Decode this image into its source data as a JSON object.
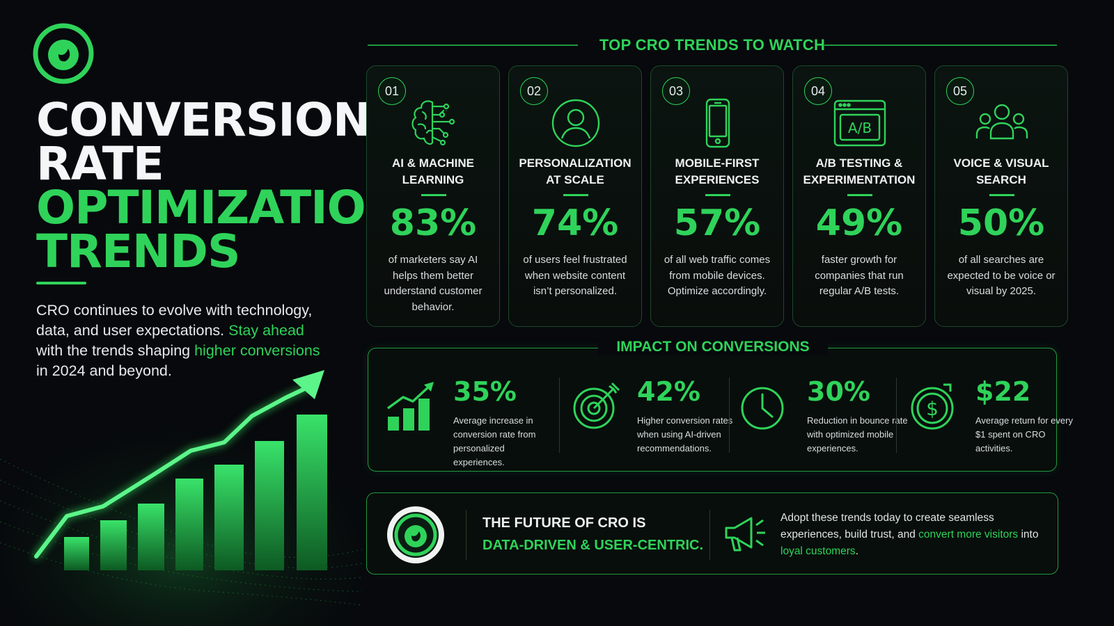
{
  "header": {
    "logo_icon": "eye-logo-icon",
    "title_line_1": "CONVERSION",
    "title_line_2": "RATE",
    "title_line_3": "OPTIMIZATION",
    "title_line_4": "TRENDS",
    "intro_part_1": "CRO continues to evolve with technology, data, and user expectations. ",
    "intro_highlight_1": "Stay ahead",
    "intro_part_2": " with the trends shaping ",
    "intro_highlight_2": "higher conversions",
    "intro_part_3": " in 2024 and beyond."
  },
  "trends": {
    "heading": "TOP CRO TRENDS TO WATCH",
    "cards": [
      {
        "number": "01",
        "icon": "brain-circuit-icon",
        "title": "AI & MACHINE LEARNING",
        "stat": "83%",
        "description": "of marketers say AI helps them better understand customer behavior."
      },
      {
        "number": "02",
        "icon": "user-icon",
        "title": "PERSONALIZATION AT SCALE",
        "stat": "74%",
        "description": "of users feel frustrated when website content isn’t personalized."
      },
      {
        "number": "03",
        "icon": "smartphone-icon",
        "title": "MOBILE-FIRST EXPERIENCES",
        "stat": "57%",
        "description": "of all web traffic comes from mobile devices. Optimize accordingly."
      },
      {
        "number": "04",
        "icon": "ab-test-window-icon",
        "title": "A/B TESTING & EXPERIMENTATION",
        "stat": "49%",
        "description": "faster growth for companies that run regular A/B tests."
      },
      {
        "number": "05",
        "icon": "user-group-icon",
        "title": "VOICE & VISUAL SEARCH",
        "stat": "50%",
        "description": "of all searches are expected to be voice or visual by 2025."
      }
    ]
  },
  "impact": {
    "heading": "IMPACT ON CONVERSIONS",
    "items": [
      {
        "icon": "bar-chart-growth-icon",
        "value": "35%",
        "description": "Average increase in conversion rate from personalized experiences."
      },
      {
        "icon": "target-icon",
        "value": "42%",
        "description": "Higher conversion rates when using AI-driven recommendations."
      },
      {
        "icon": "clock-icon",
        "value": "30%",
        "description": "Reduction in bounce rate with optimized mobile experiences."
      },
      {
        "icon": "dollar-coin-icon",
        "value": "$22",
        "description": "Average return for every $1 spent on CRO activities."
      }
    ]
  },
  "footer": {
    "logo_icon": "eye-logo-icon",
    "line_1": "THE FUTURE OF CRO IS",
    "line_2": "DATA-DRIVEN & USER-CENTRIC.",
    "megaphone_icon": "megaphone-icon",
    "text_part_1": "Adopt these trends today to create seamless experiences, build trust, and ",
    "text_highlight_1": "convert more visitors",
    "text_part_2": " into ",
    "text_highlight_2": "loyal customers",
    "text_part_3": "."
  },
  "colors": {
    "background": "#07090c",
    "accent_green": "#2fd35a",
    "border_green": "#1f9a40",
    "text_white": "#eef1f2"
  }
}
